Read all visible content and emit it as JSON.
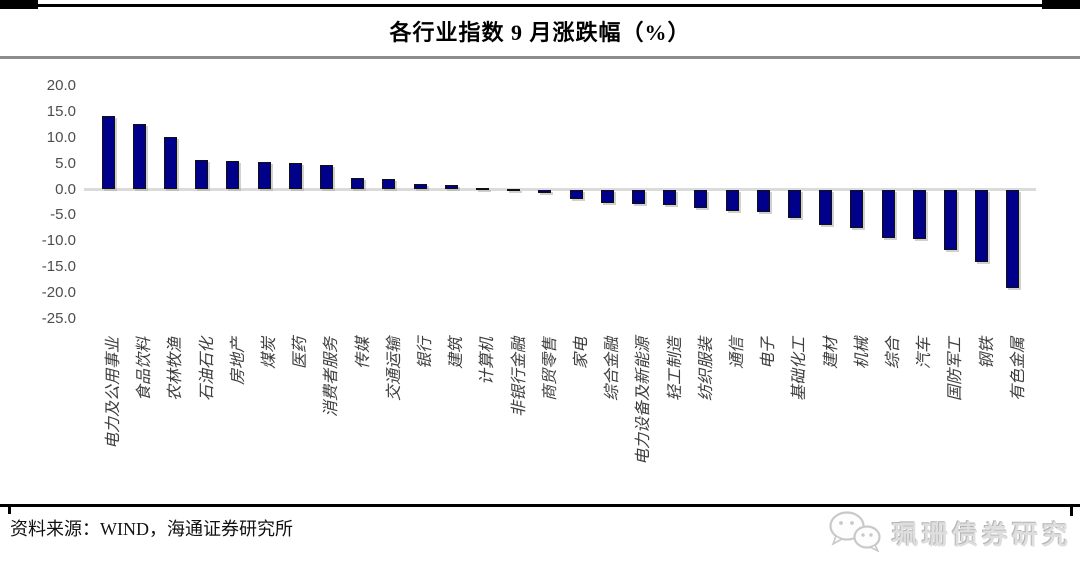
{
  "page": {
    "title": "各行业指数 9 月涨跌幅（%）",
    "source_label": "资料来源：WIND，海通证券研究所",
    "watermark_text": "珮珊债券研究",
    "watermark_icon": "wechat-icon"
  },
  "colors": {
    "bar_fill": "#00008B",
    "bar_outline": "#111111",
    "zero_line": "#DBDBDB",
    "rule_black": "#000000",
    "rule_gray": "#8C8C8C",
    "tick_text": "#4D4D4D",
    "watermark_gray": "#DEDEDE"
  },
  "chart_data": {
    "type": "bar",
    "title": "各行业指数 9 月涨跌幅（%）",
    "xlabel": "",
    "ylabel": "",
    "legend": "none",
    "grid": false,
    "x_label_rotation": 90,
    "ylim": [
      -25.0,
      20.0
    ],
    "yticks": [
      20.0,
      15.0,
      10.0,
      5.0,
      0.0,
      -5.0,
      -10.0,
      -15.0,
      -20.0,
      -25.0
    ],
    "categories": [
      "电力及公用事业",
      "食品饮料",
      "农林牧渔",
      "石油石化",
      "房地产",
      "煤炭",
      "医药",
      "消费者服务",
      "传媒",
      "交通运输",
      "银行",
      "建筑",
      "计算机",
      "非银行金融",
      "商贸零售",
      "家电",
      "综合金融",
      "电力设备及新能源",
      "轻工制造",
      "纺织服装",
      "通信",
      "电子",
      "基础化工",
      "建材",
      "机械",
      "综合",
      "汽车",
      "国防军工",
      "钢铁",
      "有色金属"
    ],
    "values": [
      14.1,
      12.7,
      10.2,
      5.7,
      5.5,
      5.4,
      5.1,
      4.8,
      2.2,
      2.1,
      1.0,
      0.8,
      0.3,
      0.1,
      -0.7,
      -1.8,
      -2.7,
      -2.8,
      -2.9,
      -3.5,
      -4.2,
      -4.3,
      -5.5,
      -6.9,
      -7.5,
      -9.3,
      -9.5,
      -11.7,
      -13.9,
      -19.0
    ]
  }
}
